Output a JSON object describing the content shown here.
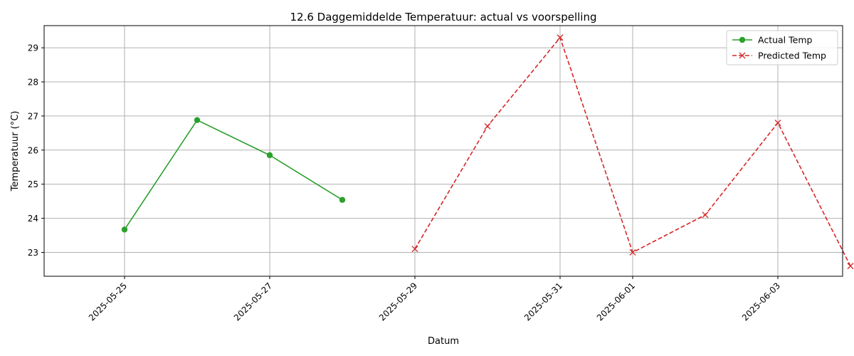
{
  "chart_data": {
    "type": "line",
    "title": "12.6 Daggemiddelde Temperatuur: actual vs voorspelling",
    "xlabel": "Datum",
    "ylabel": "Temperatuur (°C)",
    "x_tick_labels": [
      "2025-05-25",
      "2025-05-27",
      "2025-05-29",
      "2025-05-31",
      "2025-06-01",
      "2025-06-03"
    ],
    "y_tick_labels": [
      "23",
      "24",
      "25",
      "26",
      "27",
      "28",
      "29"
    ],
    "ylim": [
      22.3,
      29.65
    ],
    "xlim": [
      "2025-05-24",
      "2025-06-04"
    ],
    "grid": true,
    "legend_position": "top-right",
    "series": [
      {
        "name": "Actual Temp",
        "color": "#2ca02c",
        "linestyle": "solid",
        "marker": "circle",
        "x": [
          "2025-05-25",
          "2025-05-26",
          "2025-05-27",
          "2025-05-28"
        ],
        "values": [
          23.67,
          26.88,
          25.85,
          24.54
        ]
      },
      {
        "name": "Predicted Temp",
        "color": "#d62728",
        "linestyle": "dashed",
        "marker": "x",
        "x": [
          "2025-05-29",
          "2025-05-30",
          "2025-05-31",
          "2025-06-01",
          "2025-06-02",
          "2025-06-03",
          "2025-06-04"
        ],
        "values": [
          23.1,
          26.7,
          29.3,
          23.0,
          24.1,
          26.8,
          22.6
        ]
      }
    ]
  }
}
